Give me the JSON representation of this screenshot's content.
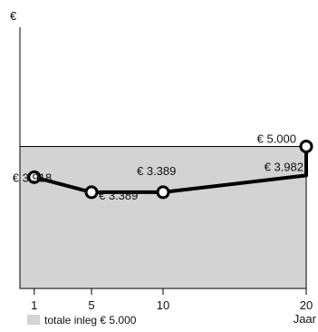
{
  "chart_data": {
    "type": "line",
    "currency_symbol": "€",
    "x_axis_label": "Jaar",
    "x": [
      1,
      5,
      10,
      20
    ],
    "x_ticks": [
      "1",
      "5",
      "10",
      "20"
    ],
    "xlim": [
      0,
      20
    ],
    "series": [
      {
        "values": [
          3918,
          3389,
          3389,
          3982
        ],
        "color": "#000000",
        "labels": [
          "€ 3.918",
          "€ 3.389",
          "€ 3.389",
          "€ 3.982"
        ]
      }
    ],
    "reference_point": {
      "x": 20,
      "value": 5000,
      "label": "€ 5.000"
    },
    "area": {
      "value": 5000,
      "color": "#d3d3d3"
    },
    "legend": {
      "label": "totale inleg € 5.000",
      "color": "#d3d3d3",
      "placement": "bottom-left"
    },
    "ylim": [
      0,
      9200
    ],
    "grid": false
  }
}
